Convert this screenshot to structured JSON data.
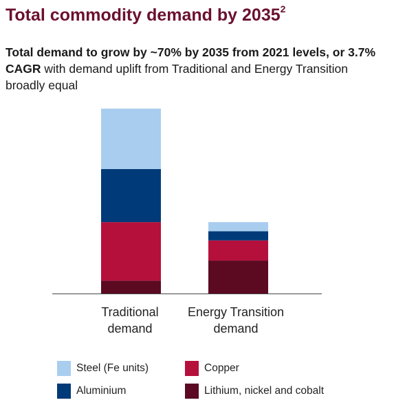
{
  "title": "Total commodity demand by 2035",
  "title_sup": "2",
  "subtitle": {
    "bold": "Total demand to grow by ~70% by 2035 from 2021 levels, or 3.7% CAGR",
    "normal": " with demand uplift from Traditional and Energy Transition broadly equal"
  },
  "chart_data": {
    "type": "bar",
    "stacked": true,
    "title": "Total commodity demand by 2035",
    "categories": [
      "Traditional demand",
      "Energy Transition demand"
    ],
    "category_lines": [
      [
        "Traditional",
        "demand"
      ],
      [
        "Energy Transition",
        "demand"
      ]
    ],
    "series": [
      {
        "name": "Lithium, nickel and cobalt",
        "color": "#5c0a22",
        "values": [
          7,
          18
        ]
      },
      {
        "name": "Copper",
        "color": "#b5103c",
        "values": [
          32,
          11
        ]
      },
      {
        "name": "Aluminium",
        "color": "#003a78",
        "values": [
          29,
          5
        ]
      },
      {
        "name": "Steel (Fe units)",
        "color": "#a9cdef",
        "values": [
          33,
          5
        ]
      }
    ],
    "ylim": [
      0,
      101
    ],
    "grid": false,
    "legend": "bottom"
  },
  "legend": [
    {
      "label": "Steel (Fe units)",
      "color": "#a9cdef"
    },
    {
      "label": "Copper",
      "color": "#b5103c"
    },
    {
      "label": "Aluminium",
      "color": "#003a78"
    },
    {
      "label": "Lithium, nickel and cobalt",
      "color": "#5c0a22"
    }
  ]
}
